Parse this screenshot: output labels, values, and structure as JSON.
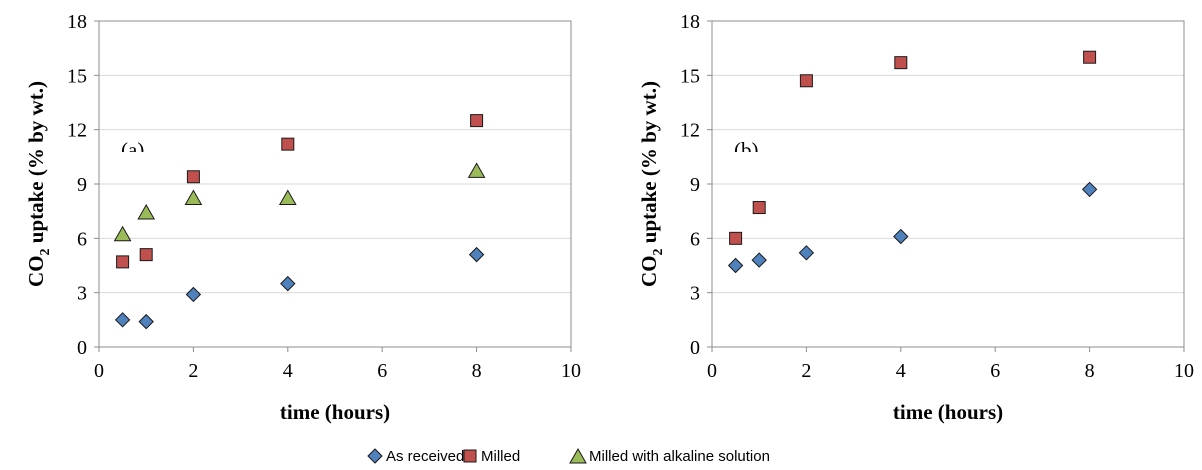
{
  "colors": {
    "as_received": "#4f81bd",
    "milled": "#c0504d",
    "milled_alkaline": "#9bbb59",
    "gridline": "#d9d9d9",
    "axis": "#8c8c8c"
  },
  "legend": {
    "items": [
      {
        "label": "As received",
        "marker": "diamond",
        "color_key": "as_received"
      },
      {
        "label": "Milled",
        "marker": "square",
        "color_key": "milled"
      },
      {
        "label": "Milled with alkaline solution",
        "marker": "triangle",
        "color_key": "milled_alkaline"
      }
    ]
  },
  "chart_data": [
    {
      "type": "scatter",
      "panel_label": "(a)",
      "xlabel": "time (hours)",
      "ylabel_main": "CO",
      "ylabel_sub": "2",
      "ylabel_rest": " uptake (% by wt.)",
      "xlim": [
        0,
        10
      ],
      "ylim": [
        0,
        18
      ],
      "xticks": [
        "0",
        "2",
        "4",
        "6",
        "8",
        "10"
      ],
      "yticks": [
        "0",
        "3",
        "6",
        "9",
        "12",
        "15",
        "18"
      ],
      "grid": "horizontal",
      "series": [
        {
          "name": "As received",
          "marker": "diamond",
          "color_key": "as_received",
          "x": [
            0.5,
            1,
            2,
            4,
            8
          ],
          "y": [
            1.5,
            1.4,
            2.9,
            3.5,
            5.1
          ]
        },
        {
          "name": "Milled",
          "marker": "square",
          "color_key": "milled",
          "x": [
            0.5,
            1,
            2,
            4,
            8
          ],
          "y": [
            4.7,
            5.1,
            9.4,
            11.2,
            12.5
          ]
        },
        {
          "name": "Milled with alkaline solution",
          "marker": "triangle",
          "color_key": "milled_alkaline",
          "x": [
            0.5,
            1,
            2,
            4,
            8
          ],
          "y": [
            6.2,
            7.4,
            8.2,
            8.2,
            9.7
          ]
        }
      ]
    },
    {
      "type": "scatter",
      "panel_label": "(b)",
      "xlabel": "time (hours)",
      "ylabel_main": "CO",
      "ylabel_sub": "2",
      "ylabel_rest": " uptake (% by wt.)",
      "xlim": [
        0,
        10
      ],
      "ylim": [
        0,
        18
      ],
      "xticks": [
        "0",
        "2",
        "4",
        "6",
        "8",
        "10"
      ],
      "yticks": [
        "0",
        "3",
        "6",
        "9",
        "12",
        "15",
        "18"
      ],
      "grid": "horizontal",
      "series": [
        {
          "name": "As received",
          "marker": "diamond",
          "color_key": "as_received",
          "x": [
            0.5,
            1,
            2,
            4,
            8
          ],
          "y": [
            4.5,
            4.8,
            5.2,
            6.1,
            8.7
          ]
        },
        {
          "name": "Milled",
          "marker": "square",
          "color_key": "milled",
          "x": [
            0.5,
            1,
            2,
            4,
            8
          ],
          "y": [
            6.0,
            7.7,
            14.7,
            15.7,
            16.0
          ]
        }
      ]
    }
  ]
}
